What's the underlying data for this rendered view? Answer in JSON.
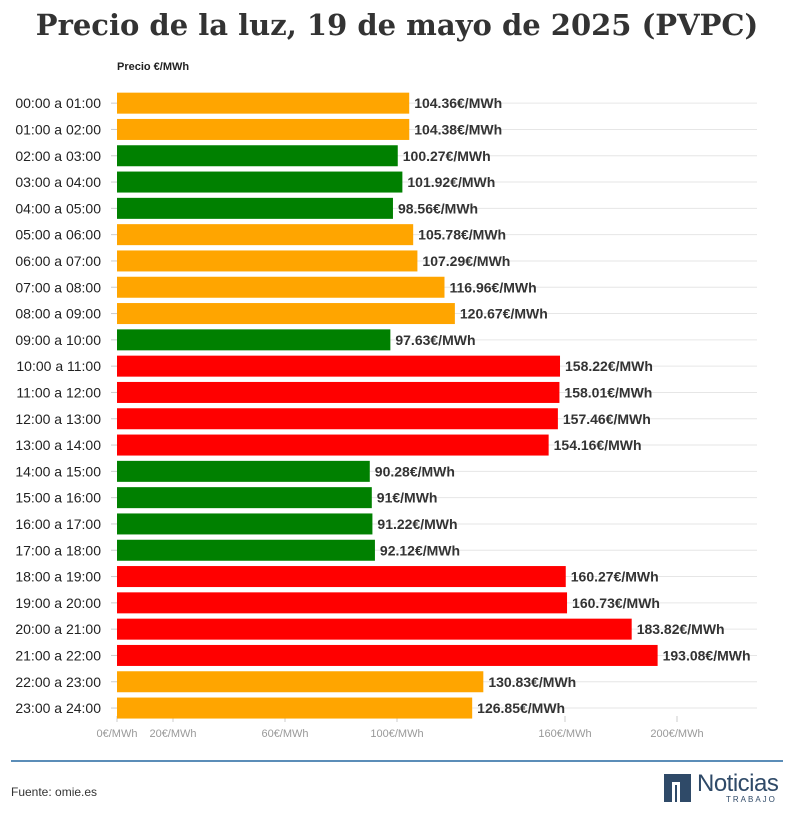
{
  "title": "Precio de la luz, 19 de mayo de 2025 (PVPC)",
  "chart_data": {
    "type": "bar",
    "orientation": "horizontal",
    "ylabel": "Precio €/MWh",
    "value_suffix": "€/MWh",
    "categories": [
      "00:00 a 01:00",
      "01:00 a 02:00",
      "02:00 a 03:00",
      "03:00 a 04:00",
      "04:00 a 05:00",
      "05:00 a 06:00",
      "06:00 a 07:00",
      "07:00 a 08:00",
      "08:00 a 09:00",
      "09:00 a 10:00",
      "10:00 a 11:00",
      "11:00 a 12:00",
      "12:00 a 13:00",
      "13:00 a 14:00",
      "14:00 a 15:00",
      "15:00 a 16:00",
      "16:00 a 17:00",
      "17:00 a 18:00",
      "18:00 a 19:00",
      "19:00 a 20:00",
      "20:00 a 21:00",
      "21:00 a 22:00",
      "22:00 a 23:00",
      "23:00 a 24:00"
    ],
    "values": [
      104.36,
      104.38,
      100.27,
      101.92,
      98.56,
      105.78,
      107.29,
      116.96,
      120.67,
      97.63,
      158.22,
      158.01,
      157.46,
      154.16,
      90.28,
      91,
      91.22,
      92.12,
      160.27,
      160.73,
      183.82,
      193.08,
      130.83,
      126.85
    ],
    "value_labels": [
      "104.36€/MWh",
      "104.38€/MWh",
      "100.27€/MWh",
      "101.92€/MWh",
      "98.56€/MWh",
      "105.78€/MWh",
      "107.29€/MWh",
      "116.96€/MWh",
      "120.67€/MWh",
      "97.63€/MWh",
      "158.22€/MWh",
      "158.01€/MWh",
      "157.46€/MWh",
      "154.16€/MWh",
      "90.28€/MWh",
      "91€/MWh",
      "91.22€/MWh",
      "92.12€/MWh",
      "160.27€/MWh",
      "160.73€/MWh",
      "183.82€/MWh",
      "193.08€/MWh",
      "130.83€/MWh",
      "126.85€/MWh"
    ],
    "levels": [
      "medio",
      "medio",
      "bajo",
      "bajo",
      "bajo",
      "medio",
      "medio",
      "medio",
      "medio",
      "bajo",
      "alto",
      "alto",
      "alto",
      "alto",
      "bajo",
      "bajo",
      "bajo",
      "bajo",
      "alto",
      "alto",
      "alto",
      "alto",
      "medio",
      "medio"
    ],
    "level_colors": {
      "bajo": "#008000",
      "medio": "#ffa500",
      "alto": "#ff0000"
    },
    "xticks": [
      {
        "value": 0,
        "label": "0€/MWh"
      },
      {
        "value": 20,
        "label": "20€/MWh"
      },
      {
        "value": 60,
        "label": "60€/MWh"
      },
      {
        "value": 100,
        "label": "100€/MWh"
      },
      {
        "value": 160,
        "label": "160€/MWh"
      },
      {
        "value": 200,
        "label": "200€/MWh"
      }
    ],
    "xlim": [
      0,
      222
    ],
    "grid": true
  },
  "source": "Fuente: omie.es",
  "brand": {
    "name": "Noticias",
    "sub": "TRABAJO"
  }
}
